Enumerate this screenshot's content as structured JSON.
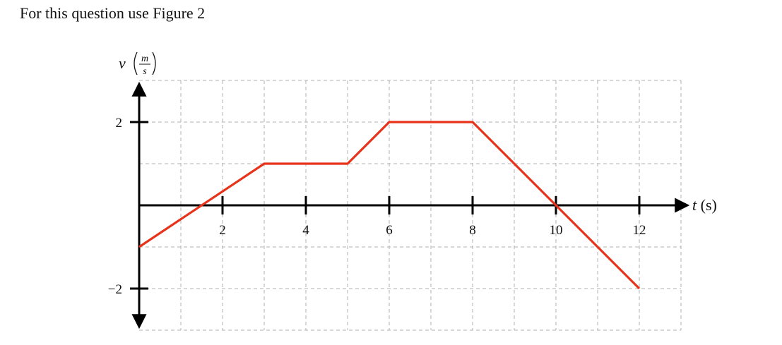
{
  "question": {
    "text": "For this question use Figure 2"
  },
  "chart_data": {
    "type": "line",
    "xlabel": "t (s)",
    "xlabel_var": "t",
    "xlabel_unit": "(s)",
    "ylabel": "v (m/s)",
    "ylabel_var": "v",
    "ylabel_unit_num": "m",
    "ylabel_unit_den": "s",
    "xlim": [
      0,
      13
    ],
    "ylim": [
      -3,
      3
    ],
    "x_ticks": [
      2,
      4,
      6,
      8,
      10,
      12
    ],
    "x_tick_labels": [
      "2",
      "4",
      "6",
      "8",
      "10",
      "12"
    ],
    "y_ticks": [
      2,
      -2
    ],
    "y_tick_labels": [
      "2",
      "−2"
    ],
    "grid": true,
    "grid_step": 1,
    "series": [
      {
        "x": [
          0,
          3,
          5,
          6,
          8,
          10,
          12
        ],
        "y": [
          -1,
          1,
          1,
          2,
          2,
          0,
          -2
        ]
      }
    ],
    "colors": {
      "line": "#e8321a",
      "axis": "#000000",
      "grid": "#b0b0b0"
    }
  }
}
